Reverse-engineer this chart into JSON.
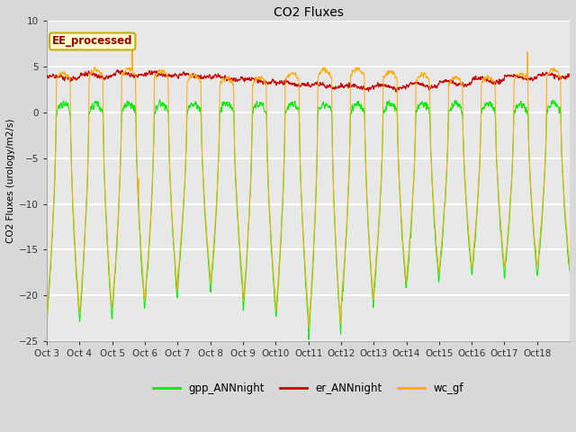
{
  "title": "CO2 Fluxes",
  "ylabel": "CO2 Fluxes (urology/m2/s)",
  "ylim": [
    -25,
    10
  ],
  "yticks": [
    -25,
    -20,
    -15,
    -10,
    -5,
    0,
    5,
    10
  ],
  "xlabels": [
    "Oct 3",
    "Oct 4",
    "Oct 5",
    "Oct 6",
    "Oct 7",
    "Oct 8",
    "Oct 9",
    "Oct 10",
    "Oct 11",
    "Oct 12",
    "Oct 13",
    "Oct 14",
    "Oct 15",
    "Oct 16",
    "Oct 17",
    "Oct 18"
  ],
  "color_gpp": "#00ee00",
  "color_er": "#cc0000",
  "color_wc": "#ffaa00",
  "legend_text": "EE_processed",
  "legend_box_facecolor": "#ffffcc",
  "legend_box_edgecolor": "#ccaa00",
  "legend_text_color": "#990000",
  "bg_color": "#d8d8d8",
  "plot_bg_color": "#e8e8e8",
  "n_days": 16,
  "pts_per_day": 144
}
